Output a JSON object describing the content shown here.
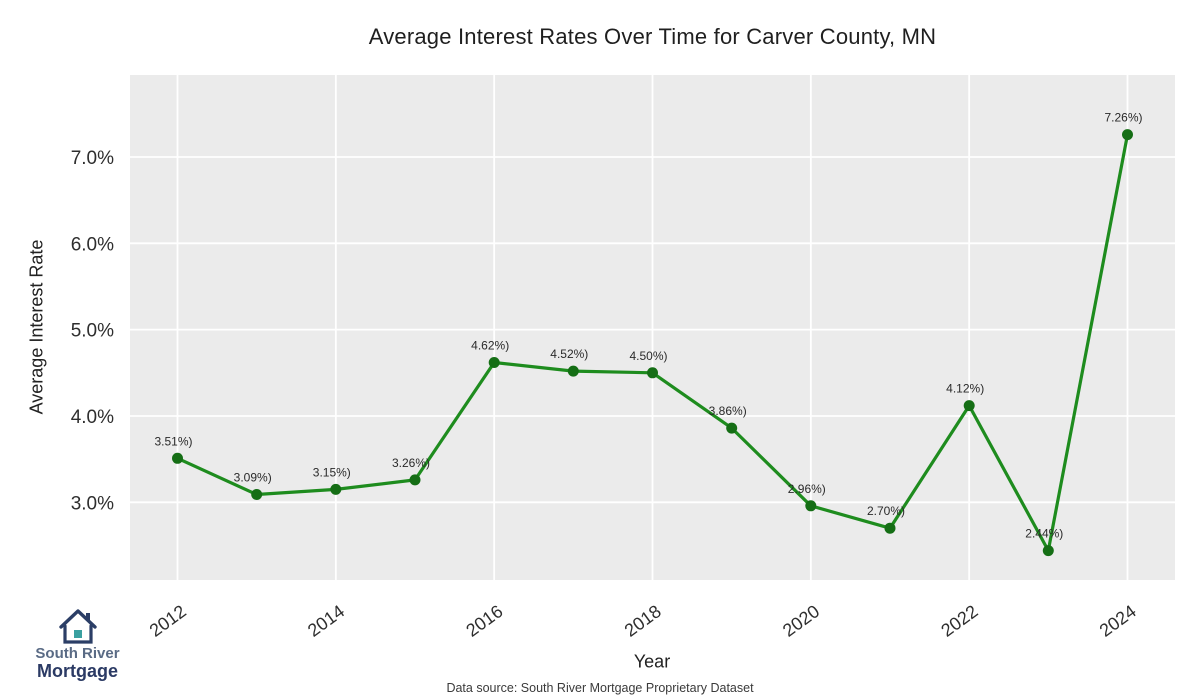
{
  "chart_data": {
    "type": "line",
    "title": "Average Interest Rates Over Time for Carver County, MN",
    "xlabel": "Year",
    "ylabel": "Average Interest Rate",
    "x": [
      2012,
      2013,
      2014,
      2015,
      2016,
      2017,
      2018,
      2019,
      2020,
      2021,
      2022,
      2023,
      2024
    ],
    "values": [
      3.51,
      3.09,
      3.15,
      3.26,
      4.62,
      4.52,
      4.5,
      3.86,
      2.96,
      2.7,
      4.12,
      2.44,
      7.26
    ],
    "point_labels": [
      "3.51%)",
      "3.09%)",
      "3.15%)",
      "3.26%)",
      "4.62%)",
      "4.52%)",
      "4.50%)",
      "3.86%)",
      "2.96%)",
      "2.70%)",
      "4.12%)",
      "2.44%)",
      "7.26%)"
    ],
    "xticks": [
      2012,
      2014,
      2016,
      2018,
      2020,
      2022,
      2024
    ],
    "yticks": [
      3,
      4,
      5,
      6,
      7
    ],
    "ytick_labels": [
      "3.0%",
      "4.0%",
      "5.0%",
      "6.0%",
      "7.0%"
    ],
    "xlim": [
      2011.4,
      2024.6
    ],
    "ylim": [
      2.1,
      7.95
    ],
    "grid": true,
    "legend": "none",
    "colors": {
      "line": "#1e8c1e",
      "marker": "#156e15",
      "plot_bg": "#ebebeb",
      "grid": "#ffffff",
      "text": "#2e2e2e"
    }
  },
  "footer": {
    "data_source": "Data source: South River Mortgage Proprietary Dataset"
  },
  "logo": {
    "line1": "South River",
    "line2": "Mortgage",
    "colors": {
      "line1": "#5a6b85",
      "line2": "#2b3a64",
      "house": "#2b3e66",
      "accent": "#3aa0a0"
    }
  }
}
